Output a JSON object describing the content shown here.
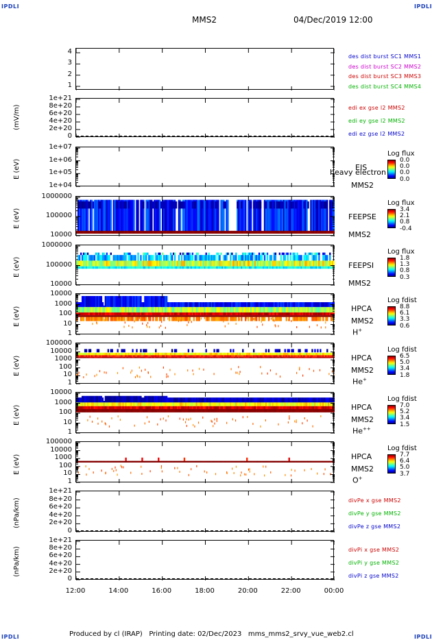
{
  "header": {
    "corner_left": "IPDLI",
    "corner_right": "IPDLI",
    "spacecraft": "MMS2",
    "datetime": "04/Dec/2019 12:00"
  },
  "footer": {
    "corner_left": "IPDLI",
    "corner_right": "IPDLI",
    "text": "Produced by cl (IRAP)   Printing date: 02/Dec/2023   mms_mms2_srvy_vue_web2.cl"
  },
  "chart_data": [
    {
      "type": "line",
      "ylabel": "",
      "yticks": [
        "4",
        "3",
        "2",
        "1"
      ],
      "ylim": [
        0.5,
        4.5
      ],
      "series": [],
      "legend": [
        {
          "name": "des dist burst SC1 MMS1",
          "color": "#0000cc"
        },
        {
          "name": "des dist burst SC2 MMS2",
          "color": "#cc00cc"
        },
        {
          "name": "des dist burst SC3 MMS3",
          "color": "#cc0000"
        },
        {
          "name": "des dist burst SC4 MMS4",
          "color": "#00b000"
        }
      ]
    },
    {
      "type": "line",
      "ylabel": "(mV/m)",
      "yticks": [
        "1e+21",
        "8e+20",
        "6e+20",
        "4e+20",
        "2e+20",
        "0"
      ],
      "ylim": [
        0,
        1e+21
      ],
      "legend": [
        {
          "name": "edi ex gse l2 MMS2",
          "color": "#cc0000"
        },
        {
          "name": "edi ey gse l2 MMS2",
          "color": "#00b000"
        },
        {
          "name": "edi ez gse l2 MMS2",
          "color": "#0000cc"
        }
      ]
    },
    {
      "type": "heatmap",
      "ylabel": "E (eV)",
      "yscale": "log",
      "yticks": [
        "1e+07",
        "1e+06",
        "1e+05",
        "1e+04"
      ],
      "ylim": [
        10000,
        10000000
      ],
      "side_label": "EIS",
      "side_label2": "MMS2",
      "overlay_text": "heavy electron to",
      "cbar_title": "Log flux",
      "cbar_ticks": [
        "0.0",
        "0.0",
        "0.0",
        "0.0"
      ],
      "empty": true
    },
    {
      "type": "heatmap",
      "ylabel": "E (eV)",
      "yscale": "log",
      "yticks": [
        "1000000",
        "100000",
        "10000"
      ],
      "ylim": [
        10000,
        1000000
      ],
      "side_label": "FEEPSE",
      "side_label2": "MMS2",
      "cbar_title": "Log flux",
      "cbar_ticks": [
        "3.4",
        "2.1",
        "0.8",
        "-0.4"
      ]
    },
    {
      "type": "heatmap",
      "ylabel": "E (eV)",
      "yscale": "log",
      "yticks": [
        "1000000",
        "100000",
        "10000"
      ],
      "ylim": [
        10000,
        1000000
      ],
      "side_label": "FEEPSI",
      "side_label2": "MMS2",
      "cbar_title": "Log flux",
      "cbar_ticks": [
        "1.8",
        "1.3",
        "0.8",
        "0.3"
      ]
    },
    {
      "type": "heatmap",
      "ylabel": "E (eV)",
      "yscale": "log",
      "yticks": [
        "10000",
        "1000",
        "100",
        "10",
        "1"
      ],
      "ylim": [
        1,
        40000
      ],
      "side_label": "HPCA",
      "side_label2": "MMS2",
      "species": "H",
      "species_sup": "+",
      "cbar_title": "Log fdist",
      "cbar_ticks": [
        "8.8",
        "6.1",
        "3.3",
        "0.6"
      ]
    },
    {
      "type": "heatmap",
      "ylabel": "E (eV)",
      "yscale": "log",
      "yticks": [
        "100000",
        "10000",
        "1000",
        "100",
        "10",
        "1"
      ],
      "ylim": [
        1,
        100000
      ],
      "side_label": "HPCA",
      "side_label2": "MMS2",
      "species": "He",
      "species_sup": "+",
      "cbar_title": "Log fdist",
      "cbar_ticks": [
        "6.5",
        "5.0",
        "3.4",
        "1.8"
      ]
    },
    {
      "type": "heatmap",
      "ylabel": "E (eV)",
      "yscale": "log",
      "yticks": [
        "10000",
        "1000",
        "100",
        "10",
        "1"
      ],
      "ylim": [
        1,
        40000
      ],
      "side_label": "HPCA",
      "side_label2": "MMS2",
      "species": "He",
      "species_sup": "++",
      "cbar_title": "Log fdist",
      "cbar_ticks": [
        "7.0",
        "5.2",
        "3.4",
        "1.5"
      ]
    },
    {
      "type": "heatmap",
      "ylabel": "E (eV)",
      "yscale": "log",
      "yticks": [
        "100000",
        "10000",
        "1000",
        "100",
        "10",
        "1"
      ],
      "ylim": [
        1,
        100000
      ],
      "side_label": "HPCA",
      "side_label2": "MMS2",
      "species": "O",
      "species_sup": "+",
      "cbar_title": "Log fdist",
      "cbar_ticks": [
        "7.7",
        "6.4",
        "5.0",
        "3.7"
      ]
    },
    {
      "type": "line",
      "ylabel": "(nPa/km)",
      "yticks": [
        "1e+21",
        "8e+20",
        "6e+20",
        "4e+20",
        "2e+20",
        "0"
      ],
      "ylim": [
        0,
        1e+21
      ],
      "legend": [
        {
          "name": "divPe x gse MMS2",
          "color": "#cc0000"
        },
        {
          "name": "divPe y gse MMS2",
          "color": "#00b000"
        },
        {
          "name": "divPe z gse MMS2",
          "color": "#0000cc"
        }
      ]
    },
    {
      "type": "line",
      "ylabel": "(nPa/km)",
      "yticks": [
        "1e+21",
        "8e+20",
        "6e+20",
        "4e+20",
        "2e+20",
        "0"
      ],
      "ylim": [
        0,
        1e+21
      ],
      "legend": [
        {
          "name": "divPi x gse MMS2",
          "color": "#cc0000"
        },
        {
          "name": "divPi y gse MMS2",
          "color": "#00b000"
        },
        {
          "name": "divPi z gse MMS2",
          "color": "#0000cc"
        }
      ]
    }
  ],
  "xaxis": {
    "ticks": [
      "12:00",
      "14:00",
      "16:00",
      "18:00",
      "20:00",
      "22:00",
      "00:00"
    ],
    "xlim": [
      "12:00",
      "00:00"
    ]
  }
}
